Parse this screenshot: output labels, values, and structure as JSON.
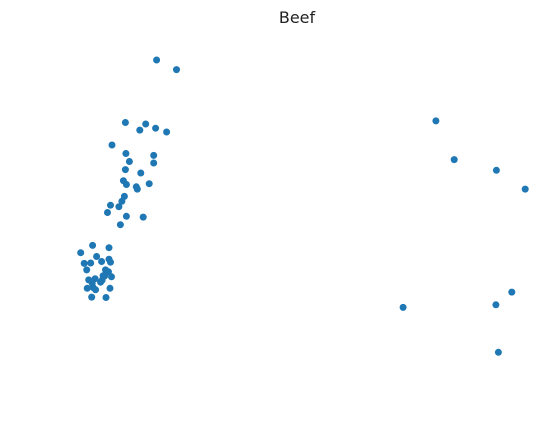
{
  "chart_data": {
    "type": "scatter",
    "title": "Beef",
    "xlabel": "",
    "ylabel": "",
    "axes_visible": false,
    "grid": false,
    "xlim": [
      0,
      100
    ],
    "ylim": [
      0,
      100
    ],
    "series": [
      {
        "color": "#1f77b4",
        "points": [
          [
            21.7,
            91.9
          ],
          [
            25.7,
            89.4
          ],
          [
            15.4,
            75.6
          ],
          [
            19.5,
            75.2
          ],
          [
            21.5,
            74.1
          ],
          [
            23.7,
            73.1
          ],
          [
            18.3,
            73.6
          ],
          [
            12.7,
            69.7
          ],
          [
            15.5,
            67.5
          ],
          [
            21.1,
            67.0
          ],
          [
            16.2,
            65.4
          ],
          [
            21.1,
            65.0
          ],
          [
            15.4,
            63.3
          ],
          [
            18.5,
            62.4
          ],
          [
            15.0,
            60.4
          ],
          [
            15.6,
            59.4
          ],
          [
            20.2,
            59.6
          ],
          [
            17.8,
            58.2
          ],
          [
            17.6,
            58.8
          ],
          [
            15.2,
            56.3
          ],
          [
            14.7,
            55.0
          ],
          [
            12.4,
            54.0
          ],
          [
            14.1,
            53.6
          ],
          [
            11.8,
            52.1
          ],
          [
            15.6,
            51.1
          ],
          [
            19.0,
            50.9
          ],
          [
            14.4,
            48.9
          ],
          [
            8.8,
            43.5
          ],
          [
            12.1,
            42.9
          ],
          [
            6.4,
            41.6
          ],
          [
            12.1,
            39.9
          ],
          [
            9.6,
            40.6
          ],
          [
            10.6,
            39.3
          ],
          [
            12.4,
            39.1
          ],
          [
            8.4,
            38.9
          ],
          [
            7.1,
            38.8
          ],
          [
            7.6,
            37.1
          ],
          [
            11.4,
            37.1
          ],
          [
            12.0,
            36.6
          ],
          [
            10.9,
            35.6
          ],
          [
            12.6,
            35.3
          ],
          [
            11.2,
            35.5
          ],
          [
            9.3,
            34.8
          ],
          [
            8.0,
            34.5
          ],
          [
            10.7,
            34.4
          ],
          [
            8.7,
            33.6
          ],
          [
            10.4,
            33.9
          ],
          [
            8.9,
            32.5
          ],
          [
            7.7,
            32.3
          ],
          [
            12.3,
            32.3
          ],
          [
            9.4,
            31.9
          ],
          [
            8.6,
            30.0
          ],
          [
            11.5,
            29.9
          ],
          [
            78.0,
            76.0
          ],
          [
            81.7,
            65.9
          ],
          [
            90.2,
            63.1
          ],
          [
            96.0,
            58.2
          ],
          [
            93.3,
            31.3
          ],
          [
            90.1,
            28.0
          ],
          [
            71.4,
            27.3
          ],
          [
            90.6,
            15.6
          ]
        ]
      }
    ]
  }
}
